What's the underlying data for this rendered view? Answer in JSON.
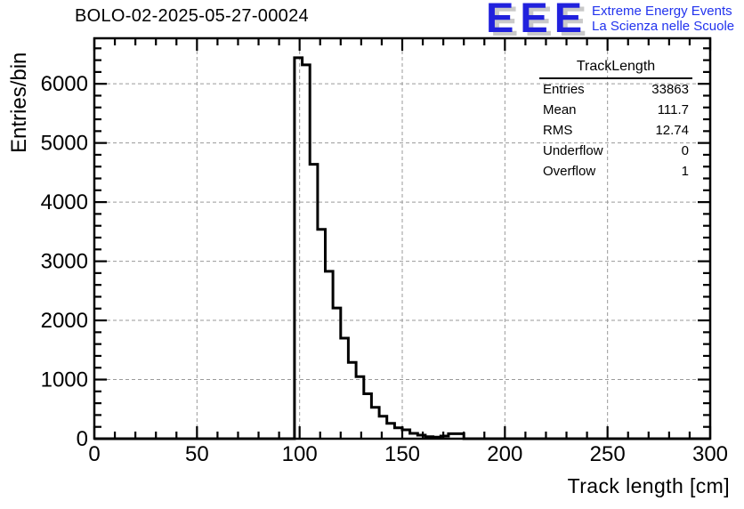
{
  "header": {
    "title": "BOLO-02-2025-05-27-00024"
  },
  "logo": {
    "acronym": "EEE",
    "tagline_line1": "Extreme Energy Events",
    "tagline_line2": "La Scienza nelle Scuole",
    "acronym_color": "#2121dd",
    "tagline_color": "#2233ee",
    "shadow_color": "#c9c9c9"
  },
  "stats_box": {
    "title": "TrackLength",
    "rows": [
      {
        "label": "Entries",
        "value": "33863"
      },
      {
        "label": "Mean",
        "value": "111.7"
      },
      {
        "label": "RMS",
        "value": "12.74"
      },
      {
        "label": "Underflow",
        "value": "0"
      },
      {
        "label": "Overflow",
        "value": "1"
      }
    ]
  },
  "chart_data": {
    "type": "bar",
    "subtype": "step-histogram",
    "title": "BOLO-02-2025-05-27-00024",
    "xlabel": "Track length [cm]",
    "ylabel": "Entries/bin",
    "xlim": [
      0,
      300
    ],
    "ylim": [
      0,
      6770
    ],
    "x_major_ticks": [
      0,
      50,
      100,
      150,
      200,
      250,
      300
    ],
    "x_minor_step": 10,
    "y_major_ticks": [
      0,
      1000,
      2000,
      3000,
      4000,
      5000,
      6000
    ],
    "y_minor_step": 200,
    "grid": "dashed",
    "grid_color": "#9a9a9a",
    "line_color": "#000000",
    "histogram": {
      "first_bin_x": 97.5,
      "bin_width": 3.75,
      "baseline_value": 0,
      "bin_values": [
        6440,
        6320,
        4640,
        3540,
        2830,
        2210,
        1700,
        1290,
        1050,
        760,
        530,
        380,
        260,
        185,
        150,
        90,
        60,
        35,
        25,
        45,
        85,
        85
      ]
    },
    "stats": {
      "entries": 33863,
      "mean": 111.7,
      "rms": 12.74,
      "underflow": 0,
      "overflow": 1
    }
  }
}
